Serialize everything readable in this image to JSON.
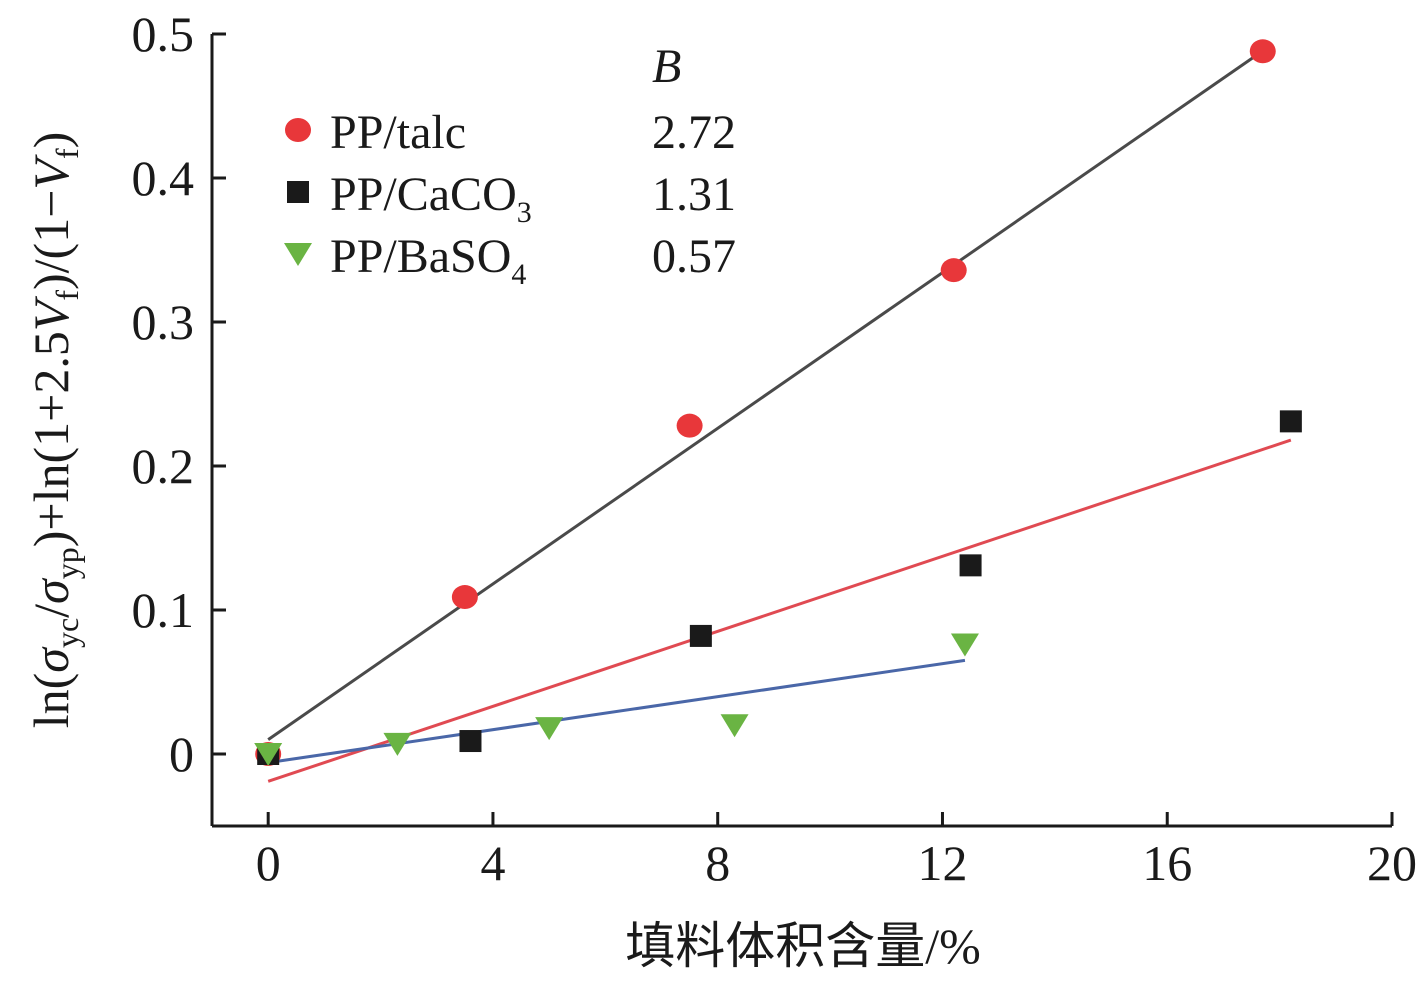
{
  "chart_data": {
    "type": "scatter",
    "xlabel": "填料体积含量/%",
    "ylabel": "ln(σyc/σyp)+ln(1+2.5Vf)/(1−Vf)",
    "ylabel_parts": [
      "ln(",
      "σ",
      "yc",
      "/",
      "σ",
      "yp",
      ")+ln(1+2.5",
      "V",
      "f",
      ")/(1−",
      "V",
      "f",
      ")"
    ],
    "xlim": [
      -1,
      20
    ],
    "ylim": [
      -0.05,
      0.5
    ],
    "xticks": [
      0,
      4,
      8,
      12,
      16,
      20
    ],
    "yticks": [
      0,
      0.1,
      0.2,
      0.3,
      0.4,
      0.5
    ],
    "ytick_labels": [
      "0",
      "0.1",
      "0.2",
      "0.3",
      "0.4",
      "0.5"
    ],
    "legend_header": "B",
    "legend_placement": "top-left",
    "grid": false,
    "series": [
      {
        "name": "PP/talc",
        "name_parts": [
          "PP/talc",
          ""
        ],
        "B": "2.72",
        "marker": "circle",
        "color": "#e8373a",
        "x": [
          0,
          3.5,
          7.5,
          12.2,
          17.7
        ],
        "y": [
          0,
          0.109,
          0.228,
          0.336,
          0.488
        ],
        "fit": {
          "x": [
            0,
            17.8
          ],
          "y": [
            0.01,
            0.491
          ],
          "color": "#4a4a4a"
        }
      },
      {
        "name": "PP/CaCO3",
        "name_parts": [
          "PP/CaCO",
          "3"
        ],
        "B": "1.31",
        "marker": "square",
        "color": "#1a1a1a",
        "x": [
          0,
          3.6,
          7.7,
          12.5,
          18.2
        ],
        "y": [
          0,
          0.009,
          0.082,
          0.131,
          0.231
        ],
        "fit": {
          "x": [
            0,
            18.2
          ],
          "y": [
            -0.019,
            0.218
          ],
          "color": "#e04a52"
        }
      },
      {
        "name": "PP/BaSO4",
        "name_parts": [
          "PP/BaSO",
          "4"
        ],
        "B": "0.57",
        "marker": "triangle-down",
        "color": "#6ab443",
        "x": [
          0,
          2.3,
          5.0,
          8.3,
          12.4
        ],
        "y": [
          0,
          0.007,
          0.018,
          0.02,
          0.076
        ],
        "fit": {
          "x": [
            0,
            12.4
          ],
          "y": [
            -0.006,
            0.065
          ],
          "color": "#4a67a8"
        }
      }
    ]
  }
}
